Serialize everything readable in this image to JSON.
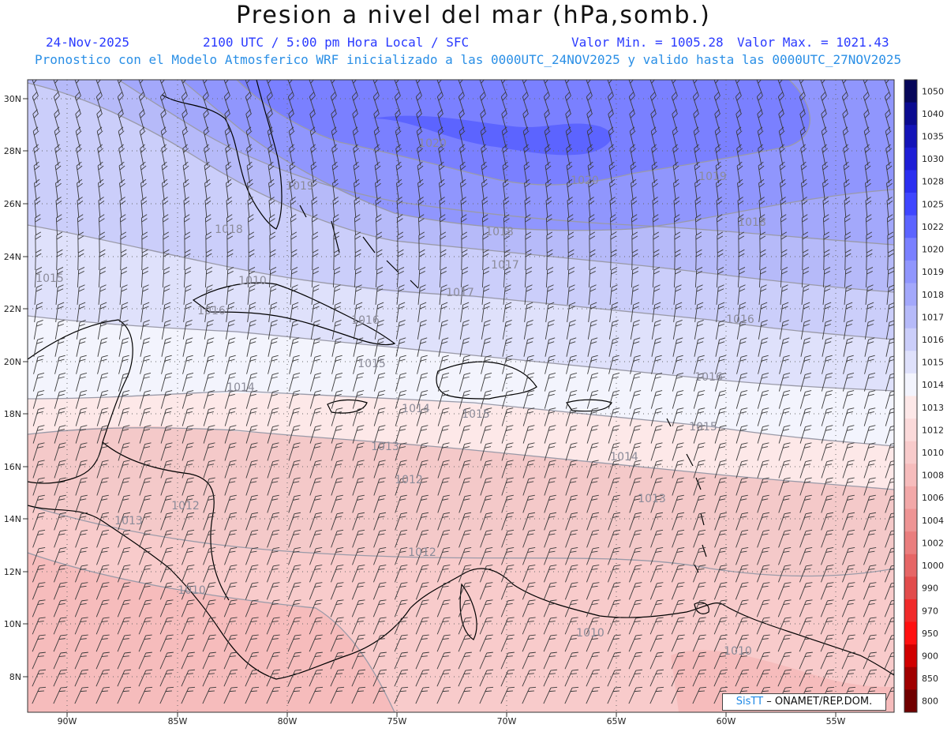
{
  "header": {
    "title": "Presion a nivel del mar (hPa,somb.)",
    "date": "24-Nov-2025",
    "time": "2100 UTC / 5:00 pm Hora Local / SFC",
    "min_value": "Valor Min. = 1005.28",
    "max_value": "Valor Max. = 1021.43",
    "model_info": "Pronostico con el Modelo Atmosferico WRF inicializado a las 0000UTC_24NOV2025 y valido hasta las 0000UTC_27NOV2025"
  },
  "axes": {
    "lat_labels": [
      "30N",
      "28N",
      "26N",
      "24N",
      "22N",
      "20N",
      "18N",
      "16N",
      "14N",
      "12N",
      "10N",
      "8N"
    ],
    "lon_labels": [
      "90W",
      "85W",
      "80W",
      "75W",
      "70W",
      "65W",
      "60W",
      "55W"
    ]
  },
  "colorbar": {
    "levels": [
      "1050",
      "1040",
      "1035",
      "1030",
      "1028",
      "1025",
      "1022",
      "1020",
      "1019",
      "1018",
      "1017",
      "1016",
      "1015",
      "1014",
      "1013",
      "1012",
      "1010",
      "1008",
      "1006",
      "1004",
      "1002",
      "1000",
      "990",
      "970",
      "950",
      "900",
      "850",
      "800"
    ],
    "colors": [
      "#07075a",
      "#0b0b90",
      "#1414b8",
      "#1e1ed6",
      "#2b2ff0",
      "#3f46ff",
      "#5c64ff",
      "#7a80ff",
      "#9096fd",
      "#a3a8fb",
      "#b6baf9",
      "#cbcefa",
      "#dfe1fb",
      "#f3f4fd",
      "#fde8e8",
      "#fbdada",
      "#f8cbcb",
      "#f6bcbc",
      "#f2a8a8",
      "#ee9494",
      "#ea7e7e",
      "#e66666",
      "#e24c4c",
      "#f02a2a",
      "#ff1010",
      "#d00000",
      "#a00000",
      "#700000"
    ]
  },
  "contour_labels": [
    {
      "text": "1020"
    },
    {
      "text": "1020"
    },
    {
      "text": "1019"
    },
    {
      "text": "1019"
    },
    {
      "text": "1018"
    },
    {
      "text": "1018"
    },
    {
      "text": "1018"
    },
    {
      "text": "1017"
    },
    {
      "text": "1017"
    },
    {
      "text": "1016"
    },
    {
      "text": "1016"
    },
    {
      "text": "1016"
    },
    {
      "text": "1015"
    },
    {
      "text": "1015"
    },
    {
      "text": "1015"
    },
    {
      "text": "1015"
    },
    {
      "text": "1014"
    },
    {
      "text": "1014"
    },
    {
      "text": "1013"
    },
    {
      "text": "1013"
    },
    {
      "text": "1013"
    },
    {
      "text": "1012"
    },
    {
      "text": "1012"
    },
    {
      "text": "1012"
    },
    {
      "text": "1010"
    },
    {
      "text": "1010"
    },
    {
      "text": "1010"
    },
    {
      "text": "1010"
    },
    {
      "text": "1016"
    },
    {
      "text": "1014"
    }
  ],
  "credit": {
    "brand": "SisTT",
    "text": "– ONAMET/REP.DOM."
  }
}
